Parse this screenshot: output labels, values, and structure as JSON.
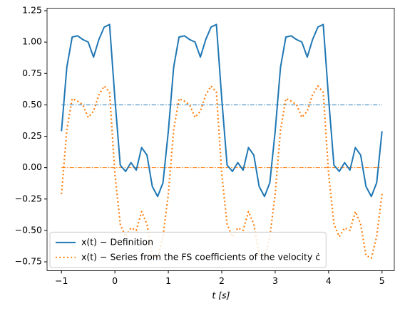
{
  "chart_data": {
    "type": "line",
    "xlabel": "t [s]",
    "x": [
      -1,
      -0.9,
      -0.8,
      -0.7,
      -0.6,
      -0.5,
      -0.4,
      -0.3,
      -0.2,
      -0.1,
      0,
      0.1,
      0.2,
      0.3,
      0.4,
      0.5,
      0.6,
      0.7,
      0.8,
      0.9,
      1,
      1.1,
      1.2,
      1.3,
      1.4,
      1.5,
      1.6,
      1.7,
      1.8,
      1.9,
      2,
      2.1,
      2.2,
      2.3,
      2.4,
      2.5,
      2.6,
      2.7,
      2.8,
      2.9,
      3,
      3.1,
      3.2,
      3.3,
      3.4,
      3.5,
      3.6,
      3.7,
      3.8,
      3.9,
      4,
      4.1,
      4.2,
      4.3,
      4.4,
      4.5,
      4.6,
      4.7,
      4.8,
      4.9,
      5
    ],
    "series": [
      {
        "name": "x(t) − Definition",
        "color": "#1f77b4",
        "style": "solid",
        "values": [
          0.29,
          0.8,
          1.04,
          1.05,
          1.02,
          1.0,
          0.88,
          1.02,
          1.12,
          1.14,
          0.55,
          0.02,
          -0.03,
          0.04,
          -0.02,
          0.16,
          0.1,
          -0.15,
          -0.23,
          -0.12,
          0.29,
          0.8,
          1.04,
          1.05,
          1.02,
          1.0,
          0.88,
          1.02,
          1.12,
          1.14,
          0.55,
          0.02,
          -0.03,
          0.04,
          -0.02,
          0.16,
          0.1,
          -0.15,
          -0.23,
          -0.12,
          0.29,
          0.8,
          1.04,
          1.05,
          1.02,
          1.0,
          0.88,
          1.02,
          1.12,
          1.14,
          0.55,
          0.02,
          -0.03,
          0.04,
          -0.02,
          0.16,
          0.1,
          -0.15,
          -0.23,
          -0.12,
          0.29
        ]
      },
      {
        "name": "x(t) − Series from the FS coefficients of the velocity ċ",
        "color": "#ff7f0e",
        "style": "dotted",
        "values": [
          -0.21,
          0.3,
          0.55,
          0.53,
          0.5,
          0.4,
          0.45,
          0.58,
          0.65,
          0.6,
          -0.05,
          -0.45,
          -0.55,
          -0.48,
          -0.5,
          -0.35,
          -0.45,
          -0.7,
          -0.72,
          -0.55,
          -0.21,
          0.3,
          0.55,
          0.53,
          0.5,
          0.4,
          0.45,
          0.58,
          0.65,
          0.6,
          -0.05,
          -0.45,
          -0.55,
          -0.48,
          -0.5,
          -0.35,
          -0.45,
          -0.7,
          -0.72,
          -0.55,
          -0.21,
          0.3,
          0.55,
          0.53,
          0.5,
          0.4,
          0.45,
          0.58,
          0.65,
          0.6,
          -0.05,
          -0.45,
          -0.55,
          -0.48,
          -0.5,
          -0.35,
          -0.45,
          -0.7,
          -0.72,
          -0.55,
          -0.21
        ]
      }
    ],
    "hlines": [
      {
        "value": 0.5,
        "color": "#1f77b4"
      },
      {
        "value": 0,
        "color": "#ff7f0e"
      }
    ],
    "xlim": [
      -1.27,
      5.23
    ],
    "ylim": [
      -0.82,
      1.27
    ],
    "xticks": [
      {
        "value": -1,
        "label": "−1"
      },
      0,
      1,
      2,
      3,
      4,
      5
    ],
    "yticks": [
      {
        "value": -0.75,
        "label": "−0.75"
      },
      {
        "value": -0.5,
        "label": "−0.50"
      },
      {
        "value": -0.25,
        "label": "−0.25"
      },
      {
        "value": 0,
        "label": "0.00"
      },
      {
        "value": 0.25,
        "label": "0.25"
      },
      {
        "value": 0.5,
        "label": "0.50"
      },
      {
        "value": 0.75,
        "label": "0.75"
      },
      {
        "value": 1,
        "label": "1.00"
      },
      {
        "value": 1.25,
        "label": "1.25"
      }
    ],
    "legend": "lower left"
  }
}
